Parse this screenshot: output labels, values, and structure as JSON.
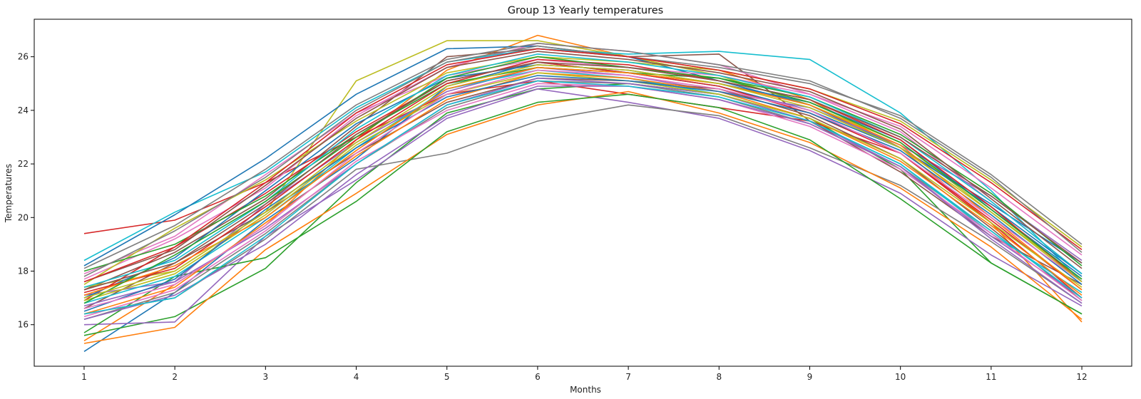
{
  "chart_data": {
    "type": "line",
    "title": "Group 13 Yearly temperatures",
    "xlabel": "Months",
    "ylabel": "Temperatures",
    "x": [
      1,
      2,
      3,
      4,
      5,
      6,
      7,
      8,
      9,
      10,
      11,
      12
    ],
    "xlim": [
      0.45,
      12.55
    ],
    "ylim": [
      14.45,
      27.4
    ],
    "xticks": [
      1,
      2,
      3,
      4,
      5,
      6,
      7,
      8,
      9,
      10,
      11,
      12
    ],
    "yticks": [
      16,
      18,
      20,
      22,
      24,
      26
    ],
    "grid": false,
    "legend": "none",
    "color_cycle": [
      "#1f77b4",
      "#ff7f0e",
      "#2ca02c",
      "#d62728",
      "#9467bd",
      "#8c564b",
      "#e377c2",
      "#7f7f7f",
      "#bcbd22",
      "#17becf"
    ],
    "series": [
      {
        "values": [
          15.0,
          17.2,
          19.9,
          22.2,
          24.9,
          25.8,
          25.4,
          24.9,
          24.0,
          22.6,
          20.5,
          18.3
        ]
      },
      {
        "values": [
          15.4,
          17.5,
          19.7,
          22.9,
          25.5,
          26.8,
          26.0,
          25.5,
          24.4,
          22.6,
          19.8,
          16.1
        ]
      },
      {
        "values": [
          15.6,
          16.3,
          18.1,
          21.3,
          23.9,
          24.8,
          25.0,
          24.6,
          23.7,
          21.8,
          18.3,
          16.4
        ]
      },
      {
        "values": [
          19.4,
          19.9,
          21.3,
          23.0,
          24.6,
          25.1,
          24.6,
          24.1,
          23.6,
          22.4,
          19.8,
          17.0
        ]
      },
      {
        "values": [
          16.0,
          16.1,
          19.3,
          21.4,
          23.7,
          24.8,
          24.3,
          23.7,
          22.5,
          20.9,
          18.6,
          16.7
        ]
      },
      {
        "values": [
          17.3,
          18.7,
          20.7,
          23.4,
          26.0,
          26.3,
          26.0,
          26.1,
          23.6,
          21.7,
          19.3,
          17.5
        ]
      },
      {
        "values": [
          17.7,
          19.2,
          21.1,
          23.8,
          25.6,
          26.5,
          26.2,
          25.7,
          24.6,
          23.2,
          20.6,
          17.9
        ]
      },
      {
        "values": [
          16.4,
          17.0,
          19.2,
          21.8,
          22.4,
          23.6,
          24.2,
          23.8,
          22.6,
          21.2,
          19.1,
          16.8
        ]
      },
      {
        "values": [
          17.4,
          18.0,
          20.2,
          25.1,
          26.6,
          26.6,
          26.0,
          25.3,
          24.2,
          22.8,
          20.2,
          17.7
        ]
      },
      {
        "values": [
          18.4,
          20.2,
          21.7,
          24.1,
          25.8,
          26.3,
          26.1,
          26.2,
          25.9,
          23.9,
          21.0,
          17.6
        ]
      },
      {
        "values": [
          18.2,
          20.1,
          22.2,
          24.6,
          26.3,
          26.4,
          26.0,
          25.1,
          24.2,
          22.6,
          20.4,
          17.9
        ]
      },
      {
        "values": [
          15.3,
          15.9,
          18.8,
          20.9,
          23.1,
          24.2,
          24.7,
          23.9,
          22.8,
          21.1,
          18.9,
          16.2
        ]
      },
      {
        "values": [
          15.7,
          17.8,
          18.5,
          20.6,
          23.2,
          24.3,
          24.6,
          24.1,
          22.9,
          20.7,
          18.3,
          16.4
        ]
      },
      {
        "values": [
          16.9,
          18.9,
          20.9,
          23.2,
          25.1,
          25.8,
          25.4,
          24.9,
          23.9,
          22.4,
          19.9,
          17.3
        ]
      },
      {
        "values": [
          17.1,
          17.6,
          20.5,
          22.8,
          24.7,
          25.6,
          25.3,
          24.7,
          24.1,
          22.7,
          20.8,
          18.4
        ]
      },
      {
        "values": [
          16.6,
          18.3,
          20.2,
          22.4,
          24.3,
          25.2,
          25.1,
          24.8,
          23.8,
          22.2,
          19.6,
          16.9
        ]
      },
      {
        "values": [
          17.9,
          19.3,
          21.6,
          23.9,
          25.3,
          25.9,
          25.6,
          25.3,
          24.6,
          23.4,
          21.1,
          18.6
        ]
      },
      {
        "values": [
          16.2,
          17.2,
          19.4,
          22.0,
          24.1,
          25.1,
          25.0,
          24.5,
          23.5,
          21.9,
          19.5,
          17.0
        ]
      },
      {
        "values": [
          17.5,
          19.6,
          21.4,
          23.6,
          25.4,
          26.0,
          25.8,
          25.5,
          24.8,
          23.6,
          21.4,
          18.9
        ]
      },
      {
        "values": [
          16.8,
          17.8,
          20.0,
          22.6,
          24.8,
          25.5,
          25.2,
          24.6,
          23.6,
          22.0,
          19.4,
          17.2
        ]
      },
      {
        "values": [
          17.0,
          18.5,
          21.0,
          23.5,
          25.2,
          25.7,
          25.5,
          25.0,
          24.3,
          22.9,
          20.3,
          17.8
        ]
      },
      {
        "values": [
          16.4,
          17.4,
          19.8,
          22.3,
          24.4,
          25.4,
          25.2,
          24.7,
          23.7,
          22.1,
          19.7,
          17.1
        ]
      },
      {
        "values": [
          18.0,
          19.0,
          20.8,
          23.1,
          25.0,
          25.6,
          25.4,
          25.2,
          24.5,
          23.1,
          20.9,
          18.2
        ]
      },
      {
        "values": [
          17.2,
          18.1,
          20.4,
          22.9,
          25.0,
          25.9,
          25.7,
          25.1,
          24.4,
          22.9,
          20.4,
          17.6
        ]
      },
      {
        "values": [
          16.7,
          17.6,
          19.6,
          22.0,
          24.2,
          25.2,
          25.0,
          24.6,
          23.6,
          21.9,
          19.3,
          17.0
        ]
      },
      {
        "values": [
          17.6,
          18.8,
          21.2,
          23.7,
          25.6,
          26.2,
          25.9,
          25.4,
          24.7,
          23.3,
          20.7,
          18.1
        ]
      },
      {
        "values": [
          16.3,
          17.3,
          19.5,
          22.1,
          24.0,
          25.0,
          24.9,
          24.4,
          23.4,
          21.8,
          19.4,
          16.9
        ]
      },
      {
        "values": [
          17.8,
          19.5,
          21.5,
          24.0,
          25.8,
          26.4,
          26.0,
          25.6,
          25.0,
          23.8,
          21.6,
          19.0
        ]
      },
      {
        "values": [
          16.9,
          17.9,
          20.1,
          22.7,
          24.6,
          25.4,
          25.1,
          24.6,
          23.7,
          22.2,
          19.8,
          17.4
        ]
      },
      {
        "values": [
          17.4,
          18.4,
          20.6,
          23.3,
          25.3,
          26.1,
          25.8,
          25.3,
          24.5,
          23.0,
          20.6,
          17.9
        ]
      },
      {
        "values": [
          16.5,
          17.7,
          20.3,
          22.6,
          24.5,
          25.3,
          25.1,
          24.7,
          23.9,
          22.5,
          20.1,
          17.5
        ]
      },
      {
        "values": [
          17.1,
          18.2,
          20.0,
          22.5,
          24.8,
          25.6,
          25.4,
          25.0,
          24.2,
          22.7,
          20.0,
          17.3
        ]
      },
      {
        "values": [
          16.8,
          18.6,
          20.6,
          23.0,
          25.2,
          26.0,
          25.6,
          25.2,
          24.3,
          22.8,
          20.3,
          17.7
        ]
      },
      {
        "values": [
          17.6,
          18.9,
          21.3,
          23.9,
          25.7,
          26.3,
          26.0,
          25.5,
          24.8,
          23.5,
          21.3,
          18.8
        ]
      },
      {
        "values": [
          16.2,
          17.1,
          19.0,
          21.6,
          23.8,
          24.9,
          24.9,
          24.4,
          23.5,
          21.9,
          19.2,
          16.8
        ]
      },
      {
        "values": [
          17.3,
          18.3,
          20.5,
          23.1,
          25.1,
          25.8,
          25.6,
          25.1,
          24.4,
          23.0,
          20.8,
          18.3
        ]
      },
      {
        "values": [
          16.6,
          17.5,
          19.7,
          22.4,
          24.6,
          25.5,
          25.3,
          24.8,
          24.0,
          22.4,
          20.0,
          17.6
        ]
      },
      {
        "values": [
          18.1,
          19.7,
          21.8,
          24.2,
          25.9,
          26.5,
          26.2,
          25.7,
          25.1,
          23.7,
          21.5,
          18.7
        ]
      },
      {
        "values": [
          17.0,
          18.0,
          20.2,
          22.8,
          24.9,
          25.7,
          25.5,
          25.0,
          24.1,
          22.6,
          20.2,
          17.6
        ]
      },
      {
        "values": [
          16.4,
          17.0,
          19.3,
          22.0,
          24.2,
          25.1,
          24.9,
          24.5,
          23.6,
          22.0,
          19.5,
          17.0
        ]
      }
    ]
  }
}
